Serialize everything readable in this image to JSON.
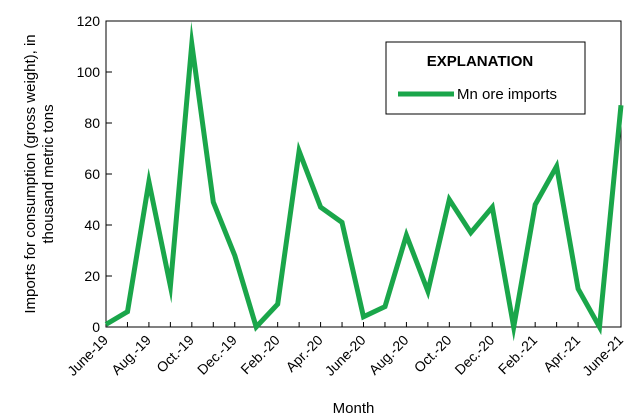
{
  "chart_data": {
    "type": "line",
    "xlabel": "Month",
    "ylabel_lines": [
      "Imports for consumption (gross weight), in",
      "thousand metric tons"
    ],
    "ylim": [
      0,
      120
    ],
    "yticks": [
      0,
      20,
      40,
      60,
      80,
      100,
      120
    ],
    "grid": false,
    "legend_position": "top-right",
    "legend_title": "EXPLANATION",
    "months": [
      "June-19",
      "July-19",
      "Aug.-19",
      "Sept.-19",
      "Oct.-19",
      "Nov.-19",
      "Dec.-19",
      "Jan.-20",
      "Feb.-20",
      "Mar.-20",
      "Apr.-20",
      "May-20",
      "June-20",
      "July-20",
      "Aug.-20",
      "Sept.-20",
      "Oct.-20",
      "Nov.-20",
      "Dec.-20",
      "Jan.-21",
      "Feb.-21",
      "Mar.-21",
      "Apr.-21",
      "May-21",
      "June-21"
    ],
    "x_tick_labels": [
      "June-19",
      "Aug.-19",
      "Oct.-19",
      "Dec.-19",
      "Feb.-20",
      "Apr.-20",
      "June-20",
      "Aug.-20",
      "Oct.-20",
      "Dec.-20",
      "Feb.-21",
      "Apr.-21",
      "June-21"
    ],
    "series": [
      {
        "name": "Mn ore imports",
        "color": "#1aa64a",
        "values": [
          1,
          6,
          57,
          16,
          111,
          49,
          28,
          0,
          9,
          69,
          47,
          41,
          4,
          8,
          36,
          14,
          50,
          37,
          47,
          0,
          48,
          63,
          15,
          0,
          87
        ]
      }
    ]
  }
}
